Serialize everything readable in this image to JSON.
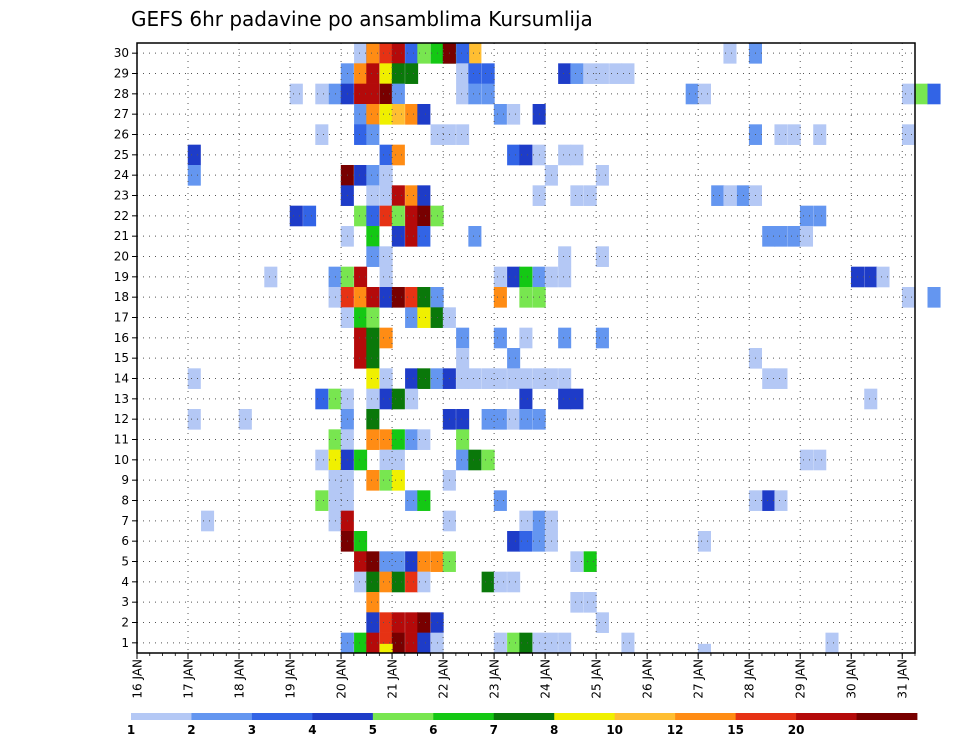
{
  "chart_data": {
    "type": "heatmap",
    "title": "GEFS 6hr padavine po ansamblima Kursumlija",
    "x_ticks": [
      "16 JAN",
      "17 JAN",
      "18 JAN",
      "19 JAN",
      "20 JAN",
      "21 JAN",
      "22 JAN",
      "23 JAN",
      "24 JAN",
      "25 JAN",
      "26 JAN",
      "27 JAN",
      "28 JAN",
      "29 JAN",
      "30 JAN",
      "31 JAN"
    ],
    "y_ticks": [
      "1",
      "2",
      "3",
      "4",
      "5",
      "6",
      "7",
      "8",
      "9",
      "10",
      "11",
      "12",
      "13",
      "14",
      "15",
      "16",
      "17",
      "18",
      "19",
      "20",
      "21",
      "22",
      "23",
      "24",
      "25",
      "26",
      "27",
      "28",
      "29",
      "30"
    ],
    "x_range_days": [
      16,
      31.25
    ],
    "step_hours": 6,
    "grid": true,
    "colorbar": {
      "labels": [
        "1",
        "2",
        "3",
        "4",
        "5",
        "6",
        "7",
        "8",
        "10",
        "12",
        "15",
        "20"
      ],
      "colors": [
        "#b4c8f5",
        "#6496f0",
        "#3264e6",
        "#1e3cc8",
        "#78e650",
        "#14c814",
        "#0a780a",
        "#f0f000",
        "#ffbe32",
        "#ff8c14",
        "#e63214",
        "#b40a0a",
        "#780000"
      ]
    },
    "cells": [
      [
        30,
        20.38,
        0
      ],
      [
        30,
        20.88,
        0
      ],
      [
        30,
        21.12,
        1
      ],
      [
        30,
        21.38,
        2
      ],
      [
        30,
        20.62,
        3
      ],
      [
        30,
        21.62,
        4
      ],
      [
        30,
        21.88,
        5
      ],
      [
        30,
        22.12,
        6
      ],
      [
        30,
        22.38,
        7
      ],
      [
        30,
        22.62,
        8
      ],
      [
        30,
        20.62,
        9
      ],
      [
        30,
        20.88,
        10
      ],
      [
        30,
        21.12,
        11
      ],
      [
        30,
        22.12,
        12
      ],
      [
        30,
        22.38,
        2
      ],
      [
        30,
        27.62,
        0
      ],
      [
        30,
        28.12,
        1
      ],
      [
        29,
        20.12,
        1
      ],
      [
        29,
        20.38,
        9
      ],
      [
        29,
        20.62,
        11
      ],
      [
        29,
        20.88,
        7
      ],
      [
        29,
        21.12,
        6
      ],
      [
        29,
        21.38,
        6
      ],
      [
        29,
        22.38,
        0
      ],
      [
        29,
        22.62,
        2
      ],
      [
        29,
        22.88,
        2
      ],
      [
        29,
        24.38,
        3
      ],
      [
        29,
        24.62,
        1
      ],
      [
        29,
        24.88,
        0
      ],
      [
        29,
        25.12,
        0
      ],
      [
        29,
        25.38,
        0
      ],
      [
        29,
        25.62,
        0
      ],
      [
        28,
        19.12,
        0
      ],
      [
        28,
        19.62,
        0
      ],
      [
        28,
        19.88,
        1
      ],
      [
        28,
        20.12,
        3
      ],
      [
        28,
        20.38,
        11
      ],
      [
        28,
        20.62,
        11
      ],
      [
        28,
        20.88,
        12
      ],
      [
        28,
        21.12,
        1
      ],
      [
        28,
        22.38,
        0
      ],
      [
        28,
        22.62,
        1
      ],
      [
        28,
        22.88,
        1
      ],
      [
        28,
        26.88,
        1
      ],
      [
        28,
        27.12,
        0
      ],
      [
        28,
        31.12,
        0
      ],
      [
        28,
        31.38,
        4
      ],
      [
        28,
        31.62,
        2
      ],
      [
        27,
        20.38,
        1
      ],
      [
        27,
        20.62,
        9
      ],
      [
        27,
        20.88,
        7
      ],
      [
        27,
        21.12,
        8
      ],
      [
        27,
        21.38,
        9
      ],
      [
        27,
        21.62,
        3
      ],
      [
        27,
        23.12,
        1
      ],
      [
        27,
        23.38,
        0
      ],
      [
        27,
        23.88,
        3
      ],
      [
        26,
        19.62,
        0
      ],
      [
        26,
        20.38,
        2
      ],
      [
        26,
        20.62,
        1
      ],
      [
        26,
        21.88,
        0
      ],
      [
        26,
        22.12,
        0
      ],
      [
        26,
        22.38,
        0
      ],
      [
        26,
        28.12,
        1
      ],
      [
        26,
        28.62,
        0
      ],
      [
        26,
        28.88,
        0
      ],
      [
        26,
        29.38,
        0
      ],
      [
        26,
        31.12,
        0
      ],
      [
        25,
        17.12,
        3
      ],
      [
        25,
        20.88,
        2
      ],
      [
        25,
        21.12,
        9
      ],
      [
        25,
        23.38,
        2
      ],
      [
        25,
        23.62,
        3
      ],
      [
        25,
        23.88,
        0
      ],
      [
        25,
        24.38,
        0
      ],
      [
        25,
        24.62,
        0
      ],
      [
        24,
        17.12,
        1
      ],
      [
        24,
        20.12,
        12
      ],
      [
        24,
        20.38,
        3
      ],
      [
        24,
        20.62,
        1
      ],
      [
        24,
        20.88,
        0
      ],
      [
        24,
        24.12,
        0
      ],
      [
        24,
        25.12,
        0
      ],
      [
        23,
        20.12,
        3
      ],
      [
        23,
        20.62,
        0
      ],
      [
        23,
        20.88,
        0
      ],
      [
        23,
        21.12,
        11
      ],
      [
        23,
        21.38,
        9
      ],
      [
        23,
        21.62,
        3
      ],
      [
        23,
        23.88,
        0
      ],
      [
        23,
        24.62,
        0
      ],
      [
        23,
        24.88,
        0
      ],
      [
        23,
        27.38,
        1
      ],
      [
        23,
        27.62,
        0
      ],
      [
        23,
        27.88,
        1
      ],
      [
        23,
        28.12,
        0
      ],
      [
        22,
        19.12,
        3
      ],
      [
        22,
        19.38,
        2
      ],
      [
        22,
        20.38,
        4
      ],
      [
        22,
        20.62,
        2
      ],
      [
        22,
        20.88,
        10
      ],
      [
        22,
        21.12,
        4
      ],
      [
        22,
        21.38,
        11
      ],
      [
        22,
        21.62,
        12
      ],
      [
        22,
        21.88,
        4
      ],
      [
        22,
        29.12,
        1
      ],
      [
        22,
        29.38,
        1
      ],
      [
        21,
        20.12,
        0
      ],
      [
        21,
        20.62,
        5
      ],
      [
        21,
        21.12,
        3
      ],
      [
        21,
        21.38,
        11
      ],
      [
        21,
        21.62,
        2
      ],
      [
        21,
        22.62,
        1
      ],
      [
        21,
        28.38,
        1
      ],
      [
        21,
        28.62,
        1
      ],
      [
        21,
        28.88,
        1
      ],
      [
        21,
        29.12,
        0
      ],
      [
        20,
        20.62,
        1
      ],
      [
        20,
        20.88,
        0
      ],
      [
        20,
        24.38,
        0
      ],
      [
        20,
        25.12,
        0
      ],
      [
        19,
        18.62,
        0
      ],
      [
        19,
        19.88,
        1
      ],
      [
        19,
        20.12,
        4
      ],
      [
        19,
        20.38,
        11
      ],
      [
        19,
        20.88,
        0
      ],
      [
        19,
        23.12,
        0
      ],
      [
        19,
        23.38,
        3
      ],
      [
        19,
        23.62,
        5
      ],
      [
        19,
        23.88,
        1
      ],
      [
        19,
        24.12,
        0
      ],
      [
        19,
        24.38,
        0
      ],
      [
        19,
        30.12,
        3
      ],
      [
        19,
        30.38,
        3
      ],
      [
        19,
        30.62,
        0
      ],
      [
        18,
        19.88,
        0
      ],
      [
        18,
        20.12,
        10
      ],
      [
        18,
        20.38,
        9
      ],
      [
        18,
        20.62,
        11
      ],
      [
        18,
        20.88,
        3
      ],
      [
        18,
        21.12,
        12
      ],
      [
        18,
        21.38,
        10
      ],
      [
        18,
        21.62,
        6
      ],
      [
        18,
        21.88,
        1
      ],
      [
        18,
        23.12,
        9
      ],
      [
        18,
        23.62,
        4
      ],
      [
        18,
        23.88,
        4
      ],
      [
        18,
        31.12,
        0
      ],
      [
        18,
        31.62,
        1
      ],
      [
        17,
        20.12,
        0
      ],
      [
        17,
        20.38,
        5
      ],
      [
        17,
        20.62,
        4
      ],
      [
        17,
        21.38,
        1
      ],
      [
        17,
        21.62,
        7
      ],
      [
        17,
        21.88,
        6
      ],
      [
        17,
        22.12,
        0
      ],
      [
        16,
        20.38,
        11
      ],
      [
        16,
        20.62,
        6
      ],
      [
        16,
        20.88,
        9
      ],
      [
        16,
        22.38,
        1
      ],
      [
        16,
        23.12,
        1
      ],
      [
        16,
        23.62,
        0
      ],
      [
        16,
        24.38,
        1
      ],
      [
        16,
        25.12,
        1
      ],
      [
        15,
        20.38,
        11
      ],
      [
        15,
        20.62,
        6
      ],
      [
        15,
        22.38,
        0
      ],
      [
        15,
        23.38,
        1
      ],
      [
        15,
        28.12,
        0
      ],
      [
        14,
        17.12,
        0
      ],
      [
        14,
        20.62,
        7
      ],
      [
        14,
        20.88,
        0
      ],
      [
        14,
        21.38,
        3
      ],
      [
        14,
        21.62,
        6
      ],
      [
        14,
        21.88,
        1
      ],
      [
        14,
        22.12,
        3
      ],
      [
        14,
        22.38,
        0
      ],
      [
        14,
        22.62,
        0
      ],
      [
        14,
        22.88,
        0
      ],
      [
        14,
        23.12,
        0
      ],
      [
        14,
        23.38,
        0
      ],
      [
        14,
        23.62,
        0
      ],
      [
        14,
        23.88,
        0
      ],
      [
        14,
        24.12,
        0
      ],
      [
        14,
        24.38,
        0
      ],
      [
        14,
        28.38,
        0
      ],
      [
        14,
        28.62,
        0
      ],
      [
        13,
        19.62,
        2
      ],
      [
        13,
        19.88,
        4
      ],
      [
        13,
        20.12,
        0
      ],
      [
        13,
        20.62,
        0
      ],
      [
        13,
        20.88,
        3
      ],
      [
        13,
        21.12,
        6
      ],
      [
        13,
        21.38,
        0
      ],
      [
        13,
        23.62,
        3
      ],
      [
        13,
        24.38,
        3
      ],
      [
        13,
        24.62,
        3
      ],
      [
        13,
        30.38,
        0
      ],
      [
        12,
        17.12,
        0
      ],
      [
        12,
        18.12,
        0
      ],
      [
        12,
        20.12,
        1
      ],
      [
        12,
        20.62,
        6
      ],
      [
        12,
        22.12,
        3
      ],
      [
        12,
        22.38,
        3
      ],
      [
        12,
        22.88,
        1
      ],
      [
        12,
        23.12,
        1
      ],
      [
        12,
        23.38,
        0
      ],
      [
        12,
        23.62,
        1
      ],
      [
        12,
        23.88,
        1
      ],
      [
        11,
        19.88,
        4
      ],
      [
        11,
        20.12,
        0
      ],
      [
        11,
        20.62,
        9
      ],
      [
        11,
        20.88,
        9
      ],
      [
        11,
        21.12,
        5
      ],
      [
        11,
        21.38,
        1
      ],
      [
        11,
        21.62,
        0
      ],
      [
        11,
        22.38,
        4
      ],
      [
        10,
        19.62,
        0
      ],
      [
        10,
        19.88,
        7
      ],
      [
        10,
        20.12,
        3
      ],
      [
        10,
        20.38,
        5
      ],
      [
        10,
        20.88,
        0
      ],
      [
        10,
        21.12,
        0
      ],
      [
        10,
        22.38,
        1
      ],
      [
        10,
        22.62,
        6
      ],
      [
        10,
        22.88,
        4
      ],
      [
        10,
        29.12,
        0
      ],
      [
        10,
        29.38,
        0
      ],
      [
        9,
        19.88,
        0
      ],
      [
        9,
        20.12,
        0
      ],
      [
        9,
        20.62,
        9
      ],
      [
        9,
        20.88,
        4
      ],
      [
        9,
        21.12,
        7
      ],
      [
        9,
        22.12,
        0
      ],
      [
        8,
        19.62,
        4
      ],
      [
        8,
        19.88,
        0
      ],
      [
        8,
        20.12,
        0
      ],
      [
        8,
        21.38,
        1
      ],
      [
        8,
        21.62,
        5
      ],
      [
        8,
        23.12,
        1
      ],
      [
        8,
        28.12,
        0
      ],
      [
        8,
        28.38,
        3
      ],
      [
        8,
        28.62,
        0
      ],
      [
        7,
        17.38,
        0
      ],
      [
        7,
        19.88,
        0
      ],
      [
        7,
        20.12,
        11
      ],
      [
        7,
        22.12,
        0
      ],
      [
        7,
        23.62,
        0
      ],
      [
        7,
        23.88,
        1
      ],
      [
        7,
        24.12,
        0
      ],
      [
        6,
        20.12,
        12
      ],
      [
        6,
        20.38,
        5
      ],
      [
        6,
        23.38,
        3
      ],
      [
        6,
        23.62,
        2
      ],
      [
        6,
        23.88,
        1
      ],
      [
        6,
        24.12,
        0
      ],
      [
        6,
        27.12,
        0
      ],
      [
        5,
        20.38,
        11
      ],
      [
        5,
        20.62,
        12
      ],
      [
        5,
        20.88,
        1
      ],
      [
        5,
        21.12,
        1
      ],
      [
        5,
        21.38,
        3
      ],
      [
        5,
        21.62,
        9
      ],
      [
        5,
        21.88,
        9
      ],
      [
        5,
        22.12,
        4
      ],
      [
        5,
        24.62,
        0
      ],
      [
        5,
        24.88,
        5
      ],
      [
        4,
        20.38,
        0
      ],
      [
        4,
        20.62,
        6
      ],
      [
        4,
        20.88,
        9
      ],
      [
        4,
        21.12,
        6
      ],
      [
        4,
        21.38,
        10
      ],
      [
        4,
        21.62,
        0
      ],
      [
        4,
        22.88,
        6
      ],
      [
        4,
        23.12,
        0
      ],
      [
        4,
        23.38,
        0
      ],
      [
        3,
        20.62,
        9
      ],
      [
        3,
        24.62,
        0
      ],
      [
        3,
        24.88,
        0
      ],
      [
        2,
        20.62,
        3
      ],
      [
        2,
        20.88,
        10
      ],
      [
        2,
        21.12,
        11
      ],
      [
        2,
        21.38,
        11
      ],
      [
        2,
        21.62,
        12
      ],
      [
        2,
        21.88,
        3
      ],
      [
        2,
        25.12,
        0
      ],
      [
        1,
        20.12,
        1
      ],
      [
        1,
        20.38,
        5
      ],
      [
        1,
        20.62,
        11
      ],
      [
        1,
        20.88,
        10
      ],
      [
        1,
        21.12,
        12
      ],
      [
        1,
        21.38,
        11
      ],
      [
        1,
        21.62,
        3
      ],
      [
        1,
        21.88,
        0
      ],
      [
        1,
        23.12,
        0
      ],
      [
        1,
        23.38,
        4
      ],
      [
        1,
        23.62,
        6
      ],
      [
        1,
        23.88,
        0
      ],
      [
        1,
        24.12,
        0
      ],
      [
        1,
        24.38,
        0
      ],
      [
        1,
        25.62,
        0
      ],
      [
        1,
        29.62,
        0
      ],
      [
        0,
        20.88,
        7
      ],
      [
        0,
        27.12,
        0
      ]
    ]
  }
}
